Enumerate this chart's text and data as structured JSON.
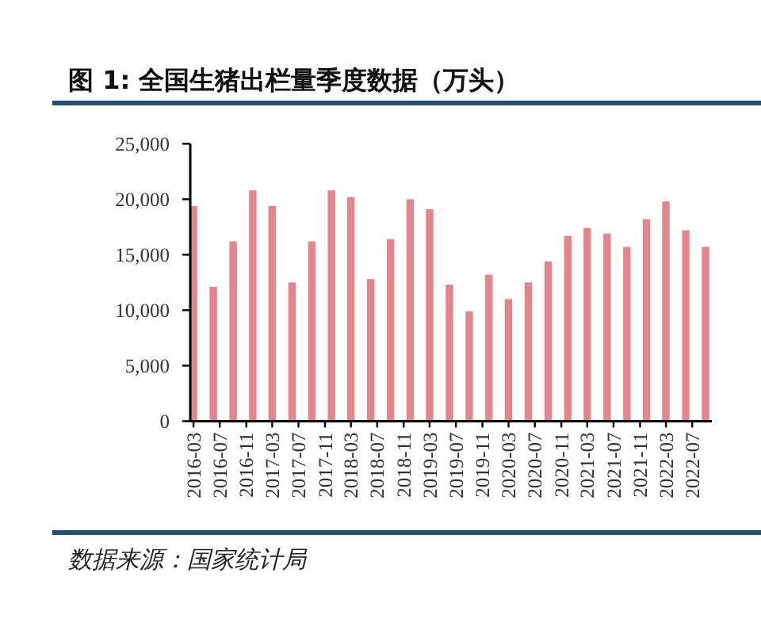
{
  "chart_data": {
    "type": "bar",
    "title": "图 1: 全国生猪出栏量季度数据（万头）",
    "color": "#e5848b",
    "x": [
      "2016-03",
      "2016-06",
      "2016-09",
      "2016-12",
      "2017-03",
      "2017-06",
      "2017-09",
      "2017-12",
      "2018-03",
      "2018-06",
      "2018-09",
      "2018-12",
      "2019-03",
      "2019-06",
      "2019-09",
      "2019-12",
      "2020-03",
      "2020-06",
      "2020-09",
      "2020-12",
      "2021-03",
      "2021-06",
      "2021-09",
      "2021-12",
      "2022-03",
      "2022-06",
      "2022-09"
    ],
    "values": [
      19400,
      12100,
      16200,
      20800,
      19400,
      12500,
      16200,
      20800,
      20200,
      12800,
      16400,
      20000,
      19100,
      12300,
      9900,
      13200,
      11000,
      12500,
      14400,
      16700,
      17400,
      16900,
      15700,
      18200,
      19800,
      17200,
      15700
    ],
    "xlim": [
      "2016-02-15",
      "2022-09-30"
    ],
    "xticks": [
      "2016-03",
      "2016-07",
      "2016-11",
      "2017-03",
      "2017-07",
      "2017-11",
      "2018-03",
      "2018-07",
      "2018-11",
      "2019-03",
      "2019-07",
      "2019-11",
      "2020-03",
      "2020-07",
      "2020-11",
      "2021-03",
      "2021-07",
      "2021-11",
      "2022-03",
      "2022-07"
    ],
    "ylim": [
      0,
      25000
    ],
    "yticks": [
      0,
      {
        "value": 5000,
        "label": "5,000"
      },
      {
        "value": 10000,
        "label": "10,000"
      },
      {
        "value": 15000,
        "label": "15,000"
      },
      {
        "value": 20000,
        "label": "20,000"
      },
      {
        "value": 25000,
        "label": "25,000"
      }
    ],
    "annotations": [
      "数据来源：国家统计局"
    ]
  }
}
